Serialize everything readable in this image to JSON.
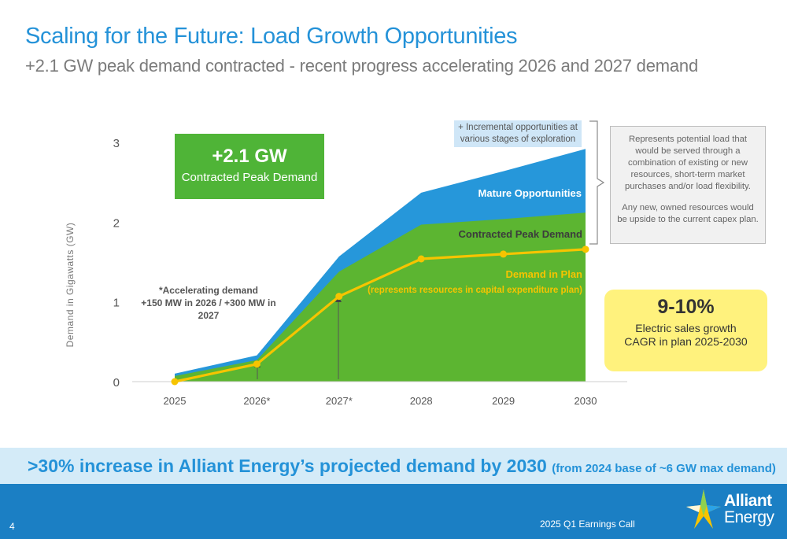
{
  "header": {
    "title": "Scaling for the Future: Load Growth Opportunities",
    "subtitle": "+2.1 GW peak demand contracted - recent progress accelerating 2026 and 2027 demand"
  },
  "chart_data": {
    "type": "area",
    "ylabel": "Demand in Gigawatts (GW)",
    "x": [
      "2025",
      "2026*",
      "2027*",
      "2028",
      "2029",
      "2030"
    ],
    "yticks": [
      0,
      1,
      2,
      3
    ],
    "ylim": [
      0,
      3.2
    ],
    "grid": false,
    "series": [
      {
        "name": "Mature Opportunities",
        "type": "area",
        "color": "#2697da",
        "values": [
          0.1,
          0.33,
          1.57,
          2.37,
          2.64,
          2.92
        ]
      },
      {
        "name": "Contracted Peak Demand",
        "type": "area",
        "color": "#5cb531",
        "values": [
          0.07,
          0.27,
          1.38,
          1.97,
          2.04,
          2.12
        ]
      },
      {
        "name": "Demand in Plan",
        "type": "line",
        "color": "#f6c400",
        "values": [
          0.0,
          0.22,
          1.07,
          1.54,
          1.6,
          1.66
        ]
      }
    ],
    "annotations": {
      "incremental": "+ Incremental opportunities at various stages of exploration",
      "mature_label": "Mature Opportunities",
      "contracted_label": "Contracted Peak Demand",
      "plan_label": "Demand in Plan",
      "plan_sublabel": "(represents resources in capital expenditure plan)",
      "accelerating_line1": "*Accelerating demand",
      "accelerating_line2": "+150 MW in 2026 / +300 MW in 2027"
    }
  },
  "callouts": {
    "gw_big": "+2.1 GW",
    "gw_small": "Contracted Peak Demand",
    "represents_p1": "Represents potential load that would be served through a combination of existing or new resources, short-term market purchases and/or load flexibility.",
    "represents_p2": "Any new, owned resources would be upside to the current capex plan.",
    "sales_big": "9-10%",
    "sales_small": "Electric sales growth CAGR in plan 2025-2030"
  },
  "banner": {
    "main": ">30% increase in Alliant Energy’s projected demand by 2030",
    "paren": "(from 2024 base of ~6 GW max demand)"
  },
  "footer": {
    "page_number": "4",
    "call_label": "2025 Q1 Earnings Call",
    "logo_line1": "Alliant",
    "logo_line2": "Energy"
  },
  "colors": {
    "title_blue": "#2492d8",
    "green": "#4fb437",
    "blue_area": "#2697da",
    "yellow_line": "#f6c400",
    "footer_blue": "#1b7fc4"
  }
}
